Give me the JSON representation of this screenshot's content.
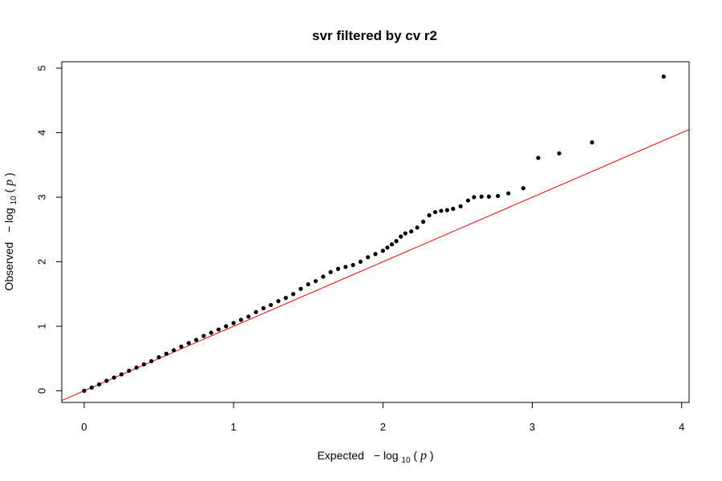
{
  "chart_data": {
    "type": "scatter",
    "title": "svr filtered by cv r2",
    "xlabel": {
      "main": "Expected",
      "minus": "−",
      "log": "log",
      "base": "10",
      "open": "(",
      "var": "p",
      "close": ")"
    },
    "ylabel": {
      "main": "Observed",
      "minus": "−",
      "log": "log",
      "base": "10",
      "open": "(",
      "var": "p",
      "close": ")"
    },
    "xlim": [
      -0.15,
      4.05
    ],
    "ylim": [
      -0.18,
      5.1
    ],
    "x_ticks": [
      0,
      1,
      2,
      3,
      4
    ],
    "x_tick_labels": [
      "0",
      "1",
      "2",
      "3",
      "4"
    ],
    "y_ticks": [
      0,
      1,
      2,
      3,
      4,
      5
    ],
    "y_tick_labels": [
      "0",
      "1",
      "2",
      "3",
      "4",
      "5"
    ],
    "reference_line": {
      "intercept": 0,
      "slope": 1,
      "color": "#ff0000"
    },
    "point_color": "#000000",
    "points": [
      [
        0.0,
        0.0
      ],
      [
        0.05,
        0.05
      ],
      [
        0.1,
        0.1
      ],
      [
        0.15,
        0.155
      ],
      [
        0.2,
        0.205
      ],
      [
        0.25,
        0.255
      ],
      [
        0.3,
        0.31
      ],
      [
        0.35,
        0.36
      ],
      [
        0.4,
        0.41
      ],
      [
        0.45,
        0.46
      ],
      [
        0.5,
        0.52
      ],
      [
        0.55,
        0.575
      ],
      [
        0.6,
        0.63
      ],
      [
        0.65,
        0.685
      ],
      [
        0.7,
        0.74
      ],
      [
        0.75,
        0.79
      ],
      [
        0.8,
        0.85
      ],
      [
        0.85,
        0.9
      ],
      [
        0.9,
        0.95
      ],
      [
        0.95,
        1.0
      ],
      [
        1.0,
        1.05
      ],
      [
        1.05,
        1.1
      ],
      [
        1.1,
        1.15
      ],
      [
        1.15,
        1.22
      ],
      [
        1.2,
        1.28
      ],
      [
        1.25,
        1.33
      ],
      [
        1.3,
        1.39
      ],
      [
        1.35,
        1.44
      ],
      [
        1.4,
        1.5
      ],
      [
        1.45,
        1.58
      ],
      [
        1.5,
        1.65
      ],
      [
        1.55,
        1.7
      ],
      [
        1.6,
        1.77
      ],
      [
        1.65,
        1.84
      ],
      [
        1.7,
        1.89
      ],
      [
        1.75,
        1.92
      ],
      [
        1.8,
        1.95
      ],
      [
        1.85,
        2.0
      ],
      [
        1.9,
        2.07
      ],
      [
        1.95,
        2.12
      ],
      [
        2.0,
        2.17
      ],
      [
        2.03,
        2.22
      ],
      [
        2.06,
        2.27
      ],
      [
        2.09,
        2.32
      ],
      [
        2.12,
        2.39
      ],
      [
        2.15,
        2.44
      ],
      [
        2.19,
        2.47
      ],
      [
        2.23,
        2.53
      ],
      [
        2.27,
        2.62
      ],
      [
        2.31,
        2.72
      ],
      [
        2.35,
        2.77
      ],
      [
        2.39,
        2.79
      ],
      [
        2.43,
        2.8
      ],
      [
        2.47,
        2.82
      ],
      [
        2.52,
        2.86
      ],
      [
        2.57,
        2.95
      ],
      [
        2.61,
        3.0
      ],
      [
        2.66,
        3.01
      ],
      [
        2.71,
        3.01
      ],
      [
        2.77,
        3.02
      ],
      [
        2.84,
        3.06
      ],
      [
        2.94,
        3.14
      ],
      [
        3.04,
        3.61
      ],
      [
        3.18,
        3.68
      ],
      [
        3.4,
        3.85
      ],
      [
        3.88,
        4.87
      ]
    ]
  }
}
